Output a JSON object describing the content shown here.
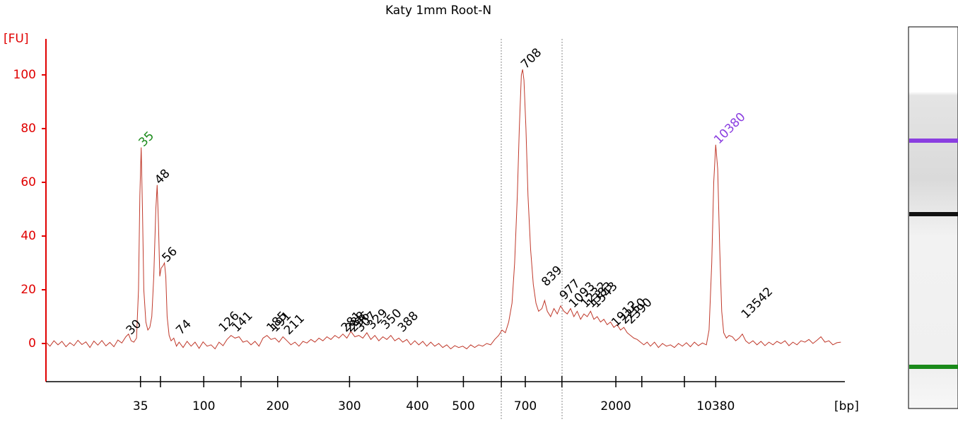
{
  "chart_data": {
    "type": "line",
    "title": "Katy 1mm Root-N",
    "ylabel": "[FU]",
    "xlabel": "[bp]",
    "color": "#c0392b",
    "axis_color": "#e00000",
    "xlim": [
      0,
      120
    ],
    "ylim": [
      -14.2,
      113.4
    ],
    "yticks": [
      0,
      20,
      40,
      60,
      80,
      100
    ],
    "xticks": [
      {
        "value": 14.2,
        "label": "35"
      },
      {
        "value": 17.2,
        "label": null
      },
      {
        "value": 23.7,
        "label": "100"
      },
      {
        "value": 29.3,
        "label": null
      },
      {
        "value": 34.8,
        "label": "200"
      },
      {
        "value": 45.6,
        "label": "300"
      },
      {
        "value": 55.8,
        "label": "400"
      },
      {
        "value": 62.7,
        "label": "500"
      },
      {
        "value": 68.4,
        "label": null
      },
      {
        "value": 72.0,
        "label": "700"
      },
      {
        "value": 77.5,
        "label": null
      },
      {
        "value": 85.6,
        "label": "2000"
      },
      {
        "value": 89.5,
        "label": null
      },
      {
        "value": 95.9,
        "label": null
      },
      {
        "value": 100.6,
        "label": "10380"
      }
    ],
    "x": [
      0,
      0.6,
      1.2,
      1.8,
      2.4,
      3,
      3.6,
      4.2,
      4.8,
      5.4,
      6,
      6.6,
      7.2,
      7.8,
      8.4,
      9,
      9.6,
      10.2,
      10.8,
      11.4,
      12,
      12.4,
      12.8,
      13.2,
      13.6,
      13.9,
      14.1,
      14.3,
      14.5,
      14.7,
      15,
      15.3,
      15.6,
      15.9,
      16.2,
      16.5,
      16.7,
      16.9,
      17.1,
      17.3,
      17.6,
      17.8,
      18,
      18.2,
      18.5,
      18.8,
      19.2,
      19.6,
      20,
      20.6,
      21.2,
      21.8,
      22.4,
      23,
      23.6,
      24.2,
      24.8,
      25.4,
      26,
      26.6,
      27.2,
      27.8,
      28.4,
      29,
      29.6,
      30.2,
      30.8,
      31.4,
      32,
      32.6,
      33.2,
      33.8,
      34.4,
      35,
      35.6,
      36.2,
      36.8,
      37.4,
      38,
      38.6,
      39.2,
      39.8,
      40.4,
      41,
      41.6,
      42.2,
      42.8,
      43.4,
      44,
      44.6,
      45.2,
      45.8,
      46.4,
      47,
      47.6,
      48.2,
      48.8,
      49.4,
      50,
      50.6,
      51.2,
      51.8,
      52.4,
      53,
      53.6,
      54.2,
      54.8,
      55.4,
      56,
      56.6,
      57.2,
      57.8,
      58.4,
      59,
      59.6,
      60.2,
      60.8,
      61.4,
      62,
      62.6,
      63.2,
      63.8,
      64.4,
      65,
      65.6,
      66.2,
      66.8,
      67.4,
      68,
      68.5,
      69,
      69.5,
      70,
      70.4,
      70.8,
      71.1,
      71.4,
      71.6,
      71.8,
      72.1,
      72.4,
      72.8,
      73.2,
      73.6,
      74,
      74.5,
      74.9,
      75.3,
      75.8,
      76.3,
      76.8,
      77.3,
      77.8,
      78.3,
      78.8,
      79.3,
      79.8,
      80.3,
      80.8,
      81.3,
      81.8,
      82.3,
      82.8,
      83.3,
      83.8,
      84.3,
      84.8,
      85.3,
      85.8,
      86.3,
      86.8,
      87.3,
      87.8,
      88.3,
      88.8,
      89.3,
      89.8,
      90.3,
      90.8,
      91.4,
      92,
      92.6,
      93.2,
      93.8,
      94.4,
      95,
      95.6,
      96.2,
      96.8,
      97.4,
      98,
      98.6,
      99.2,
      99.6,
      100,
      100.3,
      100.6,
      100.9,
      101.2,
      101.5,
      101.8,
      102.2,
      102.6,
      103.1,
      103.6,
      104.1,
      104.6,
      105.1,
      105.6,
      106.2,
      106.8,
      107.4,
      108,
      108.6,
      109.2,
      109.8,
      110.4,
      111,
      111.6,
      112.2,
      112.8,
      113.4,
      114,
      114.6,
      115.2,
      115.8,
      116.4,
      117,
      117.6,
      118.2,
      118.8,
      119.4
    ],
    "values": [
      0.5,
      -1,
      1,
      -0.5,
      0.8,
      -1.2,
      0.3,
      -0.8,
      1.2,
      -0.4,
      0.6,
      -1.5,
      0.9,
      -0.6,
      1.1,
      -0.9,
      0.4,
      -1.2,
      1.3,
      0.2,
      2.5,
      3.5,
      1,
      0.5,
      2,
      20,
      55,
      73,
      50,
      20,
      8,
      5,
      6,
      10,
      25,
      50,
      59,
      45,
      25,
      28,
      29,
      30,
      25,
      10,
      3,
      1,
      2,
      -1,
      0.5,
      -1.5,
      0.8,
      -1,
      0.5,
      -1.8,
      0.6,
      -1,
      -0.5,
      -2,
      0.5,
      -0.8,
      1.5,
      3,
      2,
      2.5,
      0.5,
      1,
      -0.5,
      0.8,
      -1,
      2,
      3,
      1.5,
      2,
      0.5,
      2.5,
      1,
      -0.5,
      0.5,
      -1,
      0.8,
      0.2,
      1.5,
      0.5,
      2,
      1,
      2.5,
      1.5,
      3,
      2,
      3.5,
      2,
      4.5,
      2.5,
      3,
      2,
      4,
      1.5,
      3,
      1,
      2.5,
      1.5,
      3,
      1,
      2,
      0.5,
      1.5,
      -0.5,
      1,
      -0.5,
      0.8,
      -1,
      0.5,
      -1,
      0,
      -1.5,
      -0.5,
      -2,
      -0.8,
      -1.5,
      -1,
      -2,
      -0.5,
      -1.5,
      -0.5,
      -1,
      0,
      -0.5,
      1.5,
      3,
      5,
      4,
      8,
      15,
      30,
      55,
      80,
      100,
      102,
      98,
      80,
      55,
      35,
      22,
      15,
      12,
      13,
      16,
      12,
      10,
      13,
      11,
      14,
      12,
      11,
      13,
      10,
      12,
      9,
      11,
      10,
      12,
      9,
      10,
      8,
      9,
      7,
      8,
      6,
      7,
      5,
      6,
      4,
      3,
      2,
      1.5,
      0.5,
      -0.5,
      0.5,
      -1,
      0.5,
      -1.5,
      0,
      -1,
      -0.5,
      -1.5,
      0,
      -1,
      0.3,
      -1.2,
      0.5,
      -0.8,
      0.2,
      -0.5,
      5,
      30,
      60,
      74,
      65,
      35,
      12,
      4,
      2,
      3,
      2.5,
      1,
      2,
      3.5,
      1,
      0,
      1,
      -0.5,
      0.8,
      -0.8,
      0.5,
      -0.5,
      0.8,
      0,
      1,
      -0.8,
      0.5,
      -0.5,
      1,
      0.5,
      1.5,
      0,
      1.2,
      2.5,
      0.5,
      1,
      -0.5,
      0.3,
      0.5
    ],
    "peaks": [
      {
        "label": "30",
        "x": 12.4,
        "y": 4,
        "color": "#000000"
      },
      {
        "label": "35",
        "x": 14.3,
        "y": 74,
        "color": "#1a8a1a"
      },
      {
        "label": "48",
        "x": 16.7,
        "y": 60,
        "color": "#000000"
      },
      {
        "label": "56",
        "x": 17.8,
        "y": 31,
        "color": "#000000"
      },
      {
        "label": "74",
        "x": 19.9,
        "y": 4,
        "color": "#000000"
      },
      {
        "label": "126",
        "x": 26.3,
        "y": 5,
        "color": "#000000"
      },
      {
        "label": "141",
        "x": 28.3,
        "y": 5,
        "color": "#000000"
      },
      {
        "label": "185",
        "x": 33.5,
        "y": 5,
        "color": "#000000"
      },
      {
        "label": "191",
        "x": 34.1,
        "y": 5,
        "color": "#000000"
      },
      {
        "label": "211",
        "x": 36.1,
        "y": 4,
        "color": "#000000"
      },
      {
        "label": "281",
        "x": 44.7,
        "y": 5,
        "color": "#000000"
      },
      {
        "label": "288",
        "x": 45.3,
        "y": 5,
        "color": "#000000"
      },
      {
        "label": "296",
        "x": 45.9,
        "y": 5,
        "color": "#000000"
      },
      {
        "label": "307",
        "x": 46.9,
        "y": 5,
        "color": "#000000"
      },
      {
        "label": "329",
        "x": 48.6,
        "y": 6,
        "color": "#000000"
      },
      {
        "label": "350",
        "x": 50.7,
        "y": 6,
        "color": "#000000"
      },
      {
        "label": "388",
        "x": 53.2,
        "y": 5,
        "color": "#000000"
      },
      {
        "label": "708",
        "x": 71.7,
        "y": 103,
        "color": "#000000"
      },
      {
        "label": "839",
        "x": 74.8,
        "y": 22,
        "color": "#000000"
      },
      {
        "label": "977",
        "x": 77.5,
        "y": 17,
        "color": "#000000"
      },
      {
        "label": "1093",
        "x": 78.9,
        "y": 14,
        "color": "#000000"
      },
      {
        "label": "1232",
        "x": 80.7,
        "y": 14,
        "color": "#000000"
      },
      {
        "label": "1383",
        "x": 81.6,
        "y": 14,
        "color": "#000000"
      },
      {
        "label": "1543",
        "x": 82.3,
        "y": 14,
        "color": "#000000"
      },
      {
        "label": "1912",
        "x": 85.3,
        "y": 7,
        "color": "#000000"
      },
      {
        "label": "2250",
        "x": 86.6,
        "y": 8,
        "color": "#000000"
      },
      {
        "label": "2390",
        "x": 87.5,
        "y": 8,
        "color": "#000000"
      },
      {
        "label": "10380",
        "x": 100.7,
        "y": 75,
        "color": "#8a3ee0"
      },
      {
        "label": "13542",
        "x": 104.8,
        "y": 10,
        "color": "#000000"
      }
    ]
  }
}
